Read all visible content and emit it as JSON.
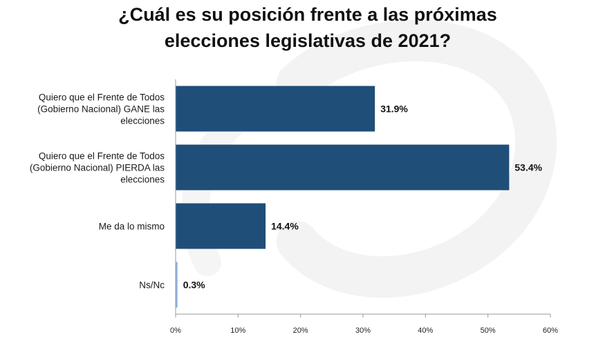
{
  "chart_data": {
    "type": "bar",
    "orientation": "horizontal",
    "title": [
      "¿Cuál es su posición frente a las próximas",
      "elecciones legislativas de 2021?"
    ],
    "categories": [
      [
        "Quiero que el Frente de Todos",
        "(Gobierno Nacional) GANE las",
        "elecciones"
      ],
      [
        "Quiero que el Frente de Todos",
        "(Gobierno Nacional) PIERDA las",
        "elecciones"
      ],
      [
        "Me da lo mismo"
      ],
      [
        "Ns/Nc"
      ]
    ],
    "values": [
      31.9,
      53.4,
      14.4,
      0.3
    ],
    "data_labels": [
      "31.9%",
      "53.4%",
      "14.4%",
      "0.3%"
    ],
    "xlim": [
      0,
      60
    ],
    "xticks": [
      0,
      10,
      20,
      30,
      40,
      50,
      60
    ],
    "xtick_labels": [
      "0%",
      "10%",
      "20%",
      "30%",
      "40%",
      "50%",
      "60%"
    ],
    "xlabel": "",
    "ylabel": "",
    "grid": false,
    "legend": "none",
    "colors": {
      "bar": "#1f4e79",
      "bar_small": "#8db3e2",
      "watermark": "#f2f2f2"
    }
  }
}
